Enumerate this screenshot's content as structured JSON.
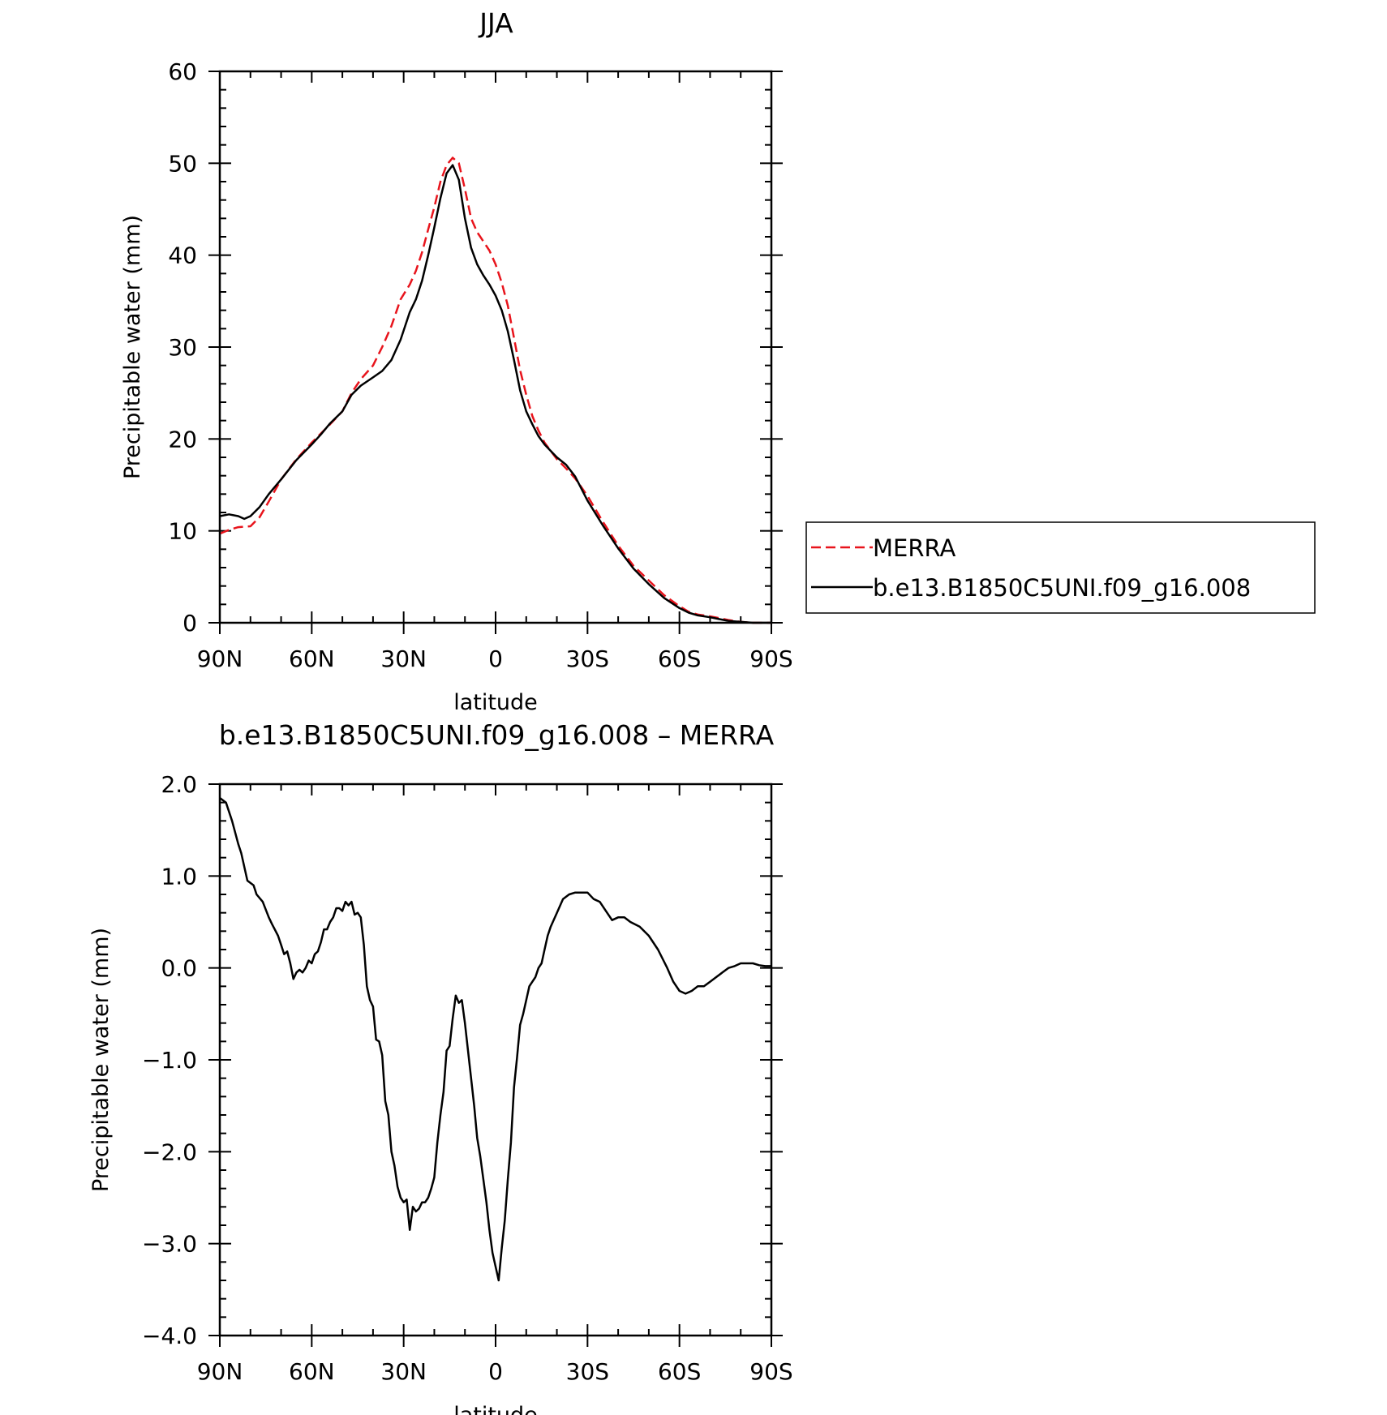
{
  "chart_data": [
    {
      "type": "line",
      "title": "JJA",
      "xlabel": "latitude",
      "ylabel": "Precipitable water (mm)",
      "xlim": [
        90,
        -90
      ],
      "ylim": [
        0,
        60
      ],
      "xticks": [
        90,
        60,
        30,
        0,
        -30,
        -60,
        -90
      ],
      "xtick_labels": [
        "90N",
        "60N",
        "30N",
        "0",
        "30S",
        "60S",
        "90S"
      ],
      "yticks": [
        0,
        10,
        20,
        30,
        40,
        50,
        60
      ],
      "ytick_labels": [
        "0",
        "10",
        "20",
        "30",
        "40",
        "50",
        "60"
      ],
      "grid": false,
      "legend_position": "right, outside plot",
      "series": [
        {
          "name": "MERRA",
          "color": "#e8141c",
          "dash": "dashed",
          "x": [
            90,
            87,
            84,
            80,
            77,
            74,
            70,
            65,
            60,
            57,
            54,
            50,
            47,
            44,
            40,
            37,
            34,
            31,
            28,
            26,
            24,
            22,
            20,
            18,
            16,
            14,
            12,
            10,
            8,
            6,
            4,
            2,
            0,
            -2,
            -4,
            -6,
            -8,
            -10,
            -12,
            -14,
            -16,
            -18,
            -20,
            -23,
            -26,
            -30,
            -35,
            -40,
            -45,
            -50,
            -55,
            -60,
            -63,
            -66,
            -70,
            -73,
            -76,
            -80,
            -84,
            -87,
            -90
          ],
          "y": [
            9.7,
            10.1,
            10.4,
            10.5,
            11.5,
            13.2,
            15.6,
            17.8,
            19.6,
            20.6,
            21.6,
            23.0,
            25.0,
            26.5,
            28.0,
            30.0,
            32.3,
            35.2,
            36.8,
            38.3,
            40.3,
            42.8,
            45.2,
            48.0,
            49.8,
            50.6,
            50.0,
            47.2,
            44.0,
            42.5,
            41.5,
            40.5,
            39.0,
            37.0,
            34.5,
            31.0,
            27.5,
            24.8,
            22.5,
            20.9,
            19.6,
            18.7,
            17.8,
            16.8,
            15.7,
            13.8,
            11.0,
            8.4,
            6.2,
            4.6,
            3.0,
            1.8,
            1.2,
            0.9,
            0.7,
            0.5,
            0.3,
            0.1,
            0.0,
            0.0,
            0.0
          ]
        },
        {
          "name": "b.e13.B1850C5UNI.f09_g16.008",
          "color": "#000000",
          "dash": "solid",
          "x": [
            90,
            87,
            84,
            82,
            80,
            77,
            74,
            70,
            65,
            60,
            57,
            54,
            50,
            47,
            44,
            40,
            37,
            34,
            31,
            28,
            26,
            24,
            22,
            20,
            18,
            16,
            14,
            12,
            10,
            8,
            6,
            4,
            2,
            0,
            -2,
            -4,
            -6,
            -8,
            -10,
            -12,
            -14,
            -16,
            -18,
            -20,
            -23,
            -26,
            -30,
            -35,
            -40,
            -45,
            -50,
            -55,
            -60,
            -63,
            -66,
            -70,
            -73,
            -76,
            -80,
            -84,
            -87,
            -90
          ],
          "y": [
            11.6,
            11.8,
            11.6,
            11.3,
            11.6,
            12.6,
            14.0,
            15.6,
            17.7,
            19.4,
            20.5,
            21.7,
            23.0,
            24.8,
            25.8,
            26.7,
            27.4,
            28.6,
            30.8,
            33.8,
            35.2,
            37.2,
            40.0,
            43.0,
            46.2,
            48.9,
            49.8,
            48.2,
            44.0,
            40.8,
            39.0,
            37.8,
            36.8,
            35.6,
            34.0,
            31.7,
            28.6,
            25.3,
            23.0,
            21.6,
            20.3,
            19.4,
            18.7,
            18.0,
            17.2,
            15.9,
            13.3,
            10.6,
            8.1,
            5.9,
            4.2,
            2.7,
            1.6,
            1.1,
            0.8,
            0.6,
            0.4,
            0.2,
            0.1,
            0.0,
            0.0,
            0.0
          ]
        }
      ]
    },
    {
      "type": "line",
      "title": "b.e13.B1850C5UNI.f09_g16.008 – MERRA",
      "xlabel": "latitude",
      "ylabel": "Precipitable water (mm)",
      "xlim": [
        90,
        -90
      ],
      "ylim": [
        -4.0,
        2.0
      ],
      "xticks": [
        90,
        60,
        30,
        0,
        -30,
        -60,
        -90
      ],
      "xtick_labels": [
        "90N",
        "60N",
        "30N",
        "0",
        "30S",
        "60S",
        "90S"
      ],
      "yticks": [
        2.0,
        1.0,
        0.0,
        -1.0,
        -2.0,
        -3.0,
        -4.0
      ],
      "ytick_labels": [
        "2.0",
        "1.0",
        "0.0",
        "−1.0",
        "−2.0",
        "−3.0",
        "−4.0"
      ],
      "grid": false,
      "series": [
        {
          "color": "#000000",
          "dash": "solid",
          "x": [
            90,
            88,
            86,
            84,
            83,
            81,
            79,
            78,
            76,
            74,
            73,
            71,
            70,
            69,
            68,
            67,
            66,
            65,
            64,
            63,
            62,
            61,
            60,
            59,
            58,
            57,
            56,
            55,
            54,
            53,
            52,
            51,
            50,
            49,
            48,
            47,
            46,
            45,
            44,
            43,
            42,
            41,
            40,
            39,
            38,
            37,
            36,
            35,
            34,
            33,
            32,
            31,
            30,
            29,
            28,
            27,
            26,
            25,
            24,
            23,
            22,
            21,
            20,
            19,
            18,
            17,
            16,
            15,
            14,
            13,
            12,
            11,
            10,
            9,
            8,
            7,
            6,
            5,
            4,
            3,
            2,
            1,
            0,
            -1,
            -2,
            -3,
            -4,
            -5,
            -6,
            -7,
            -8,
            -9,
            -10,
            -11,
            -12,
            -13,
            -14,
            -15,
            -16,
            -17,
            -18,
            -20,
            -22,
            -24,
            -26,
            -28,
            -30,
            -32,
            -34,
            -36,
            -38,
            -40,
            -42,
            -44,
            -47,
            -50,
            -53,
            -56,
            -58,
            -60,
            -62,
            -64,
            -66,
            -68,
            -70,
            -72,
            -74,
            -76,
            -78,
            -80,
            -82,
            -84,
            -86,
            -88,
            -90
          ],
          "y": [
            1.85,
            1.8,
            1.6,
            1.35,
            1.25,
            0.95,
            0.9,
            0.8,
            0.72,
            0.55,
            0.48,
            0.35,
            0.25,
            0.15,
            0.18,
            0.05,
            -0.12,
            -0.05,
            -0.02,
            -0.05,
            0.0,
            0.08,
            0.05,
            0.15,
            0.18,
            0.28,
            0.42,
            0.42,
            0.5,
            0.55,
            0.65,
            0.65,
            0.62,
            0.72,
            0.68,
            0.72,
            0.58,
            0.6,
            0.55,
            0.25,
            -0.2,
            -0.35,
            -0.42,
            -0.78,
            -0.8,
            -0.95,
            -1.45,
            -1.6,
            -2.0,
            -2.15,
            -2.38,
            -2.5,
            -2.55,
            -2.52,
            -2.85,
            -2.6,
            -2.65,
            -2.62,
            -2.55,
            -2.55,
            -2.5,
            -2.4,
            -2.28,
            -1.9,
            -1.6,
            -1.35,
            -0.9,
            -0.85,
            -0.55,
            -0.3,
            -0.38,
            -0.35,
            -0.6,
            -0.9,
            -1.2,
            -1.5,
            -1.85,
            -2.05,
            -2.3,
            -2.55,
            -2.85,
            -3.1,
            -3.25,
            -3.4,
            -3.05,
            -2.75,
            -2.3,
            -1.9,
            -1.3,
            -0.98,
            -0.62,
            -0.5,
            -0.35,
            -0.2,
            -0.15,
            -0.1,
            0.0,
            0.05,
            0.2,
            0.35,
            0.45,
            0.6,
            0.75,
            0.8,
            0.82,
            0.82,
            0.82,
            0.75,
            0.72,
            0.62,
            0.52,
            0.55,
            0.55,
            0.5,
            0.45,
            0.35,
            0.2,
            0.0,
            -0.15,
            -0.25,
            -0.28,
            -0.25,
            -0.2,
            -0.2,
            -0.15,
            -0.1,
            -0.05,
            0.0,
            0.02,
            0.05,
            0.05,
            0.05,
            0.03,
            0.02,
            0.02
          ]
        }
      ]
    }
  ]
}
